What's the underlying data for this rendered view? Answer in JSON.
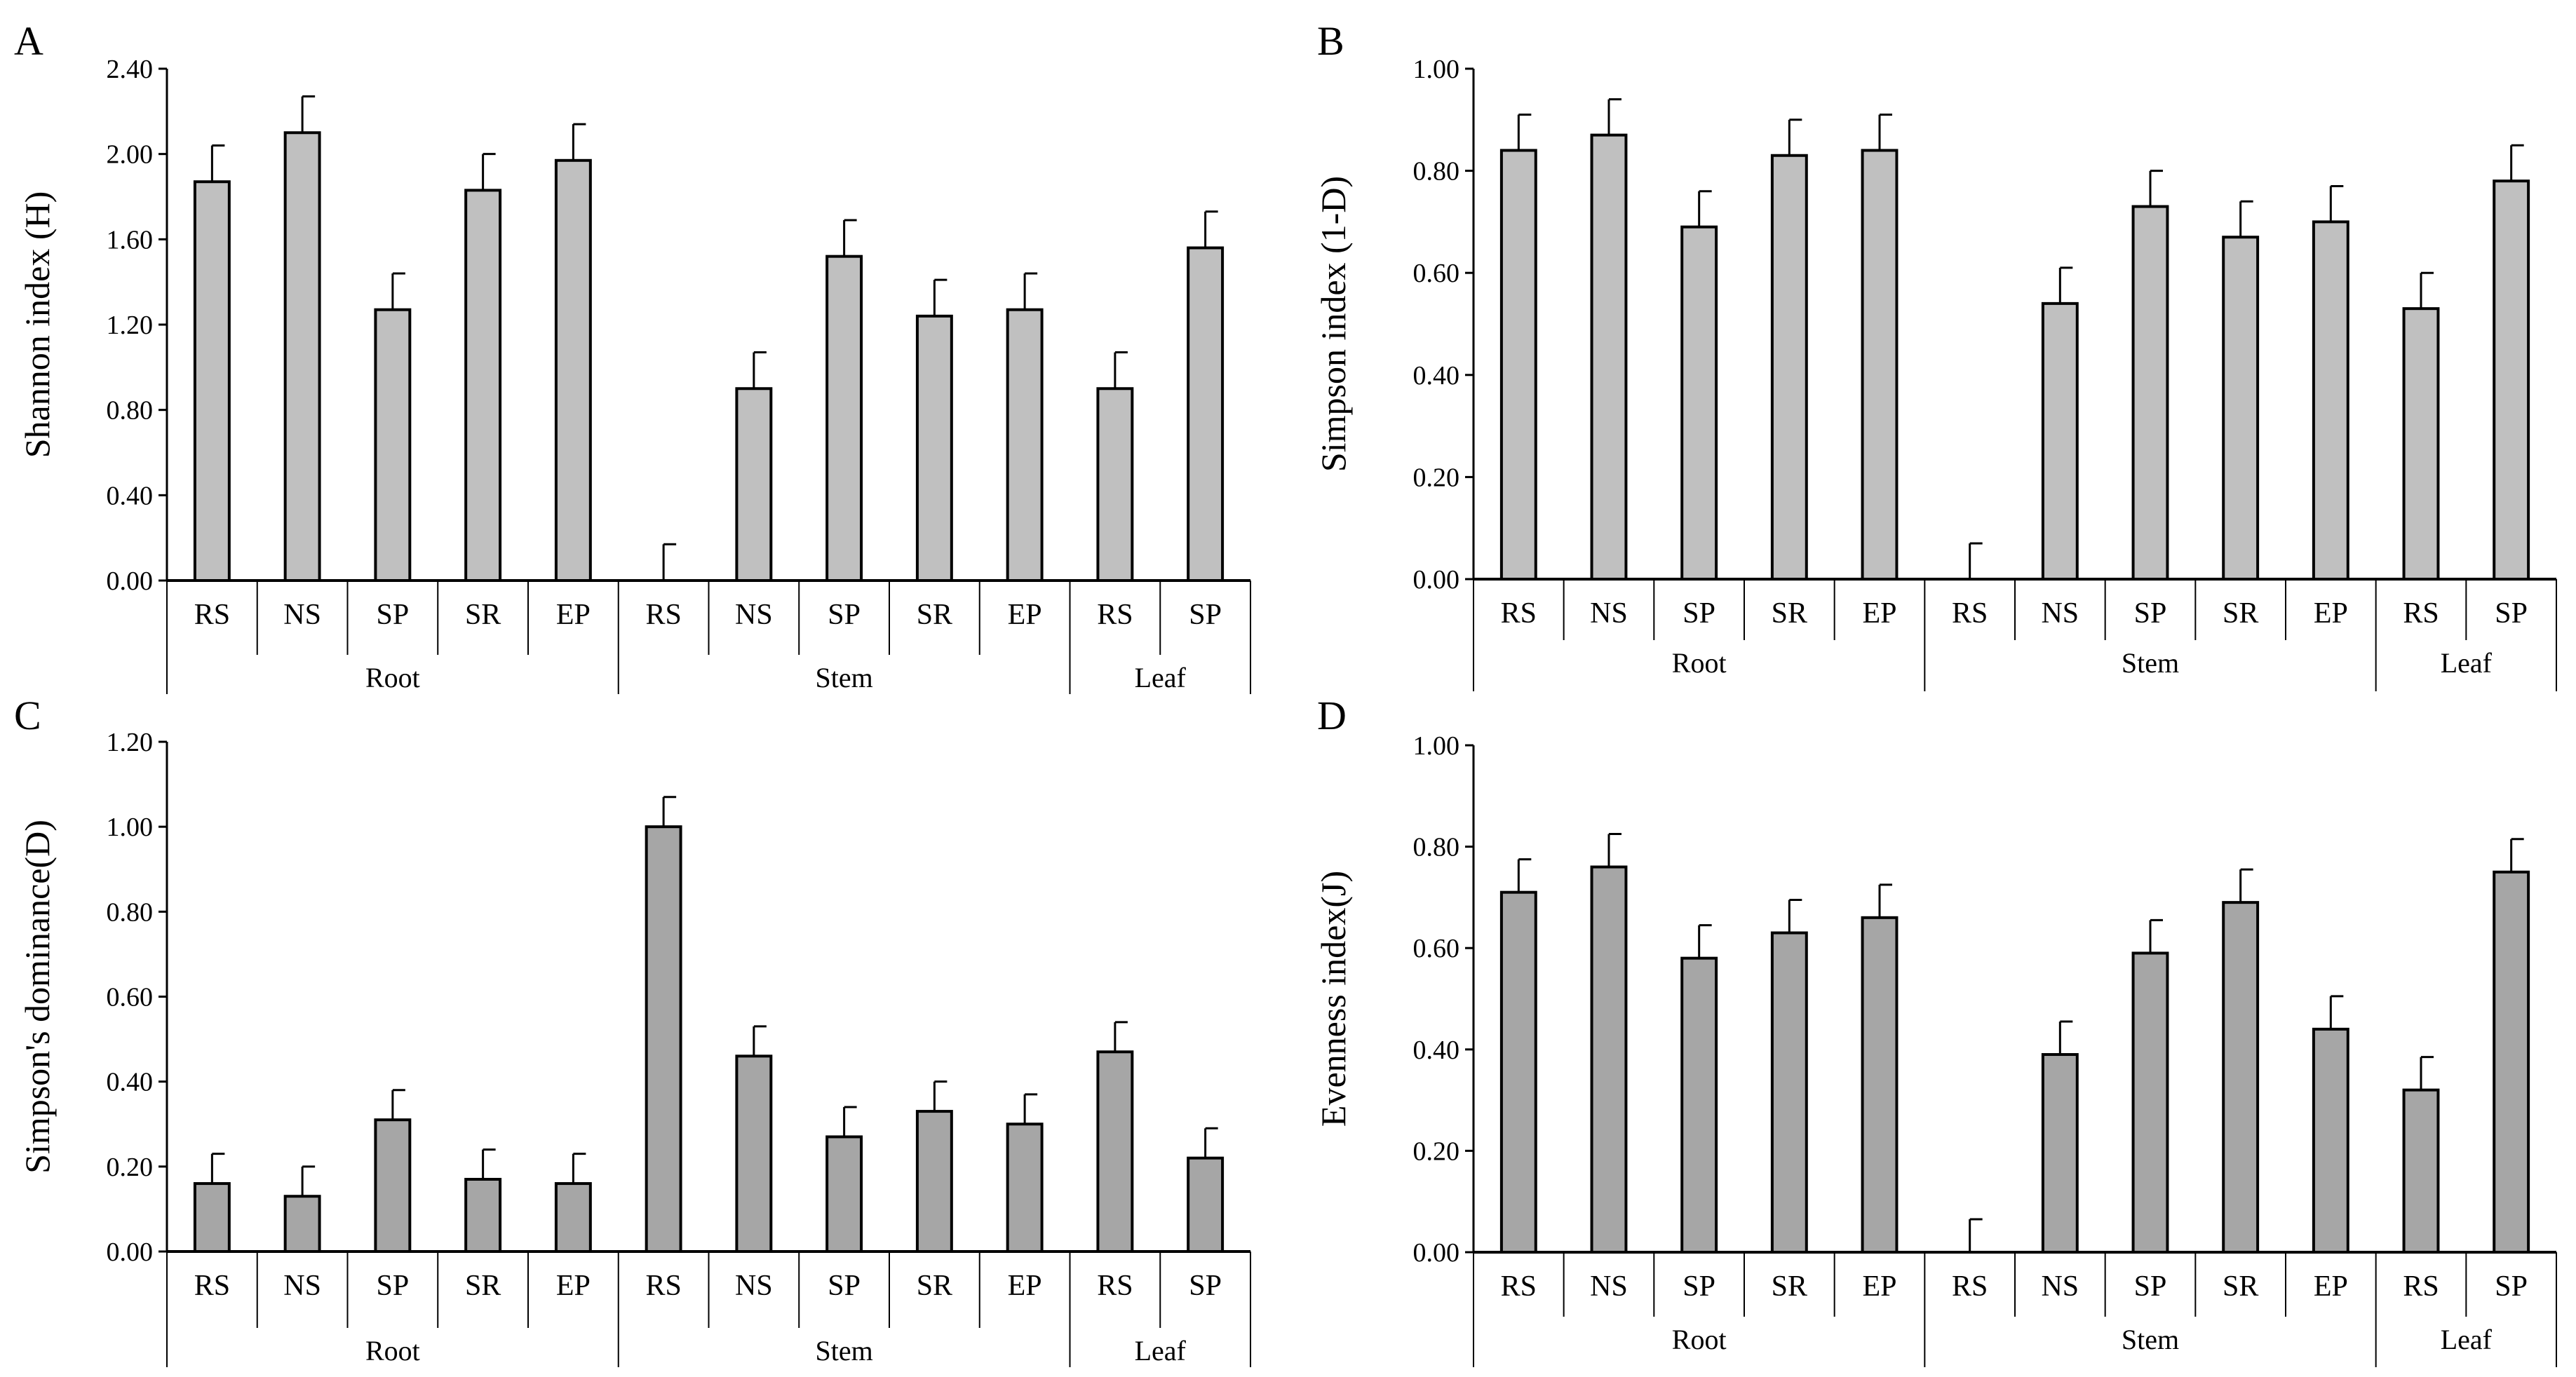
{
  "chart_data": [
    {
      "panel": "A",
      "type": "bar",
      "ylabel": "Shannon index (H)",
      "ylim": [
        0,
        2.4
      ],
      "ytick_labels": [
        "0.00",
        "0.40",
        "0.80",
        "1.20",
        "1.60",
        "2.00",
        "2.40"
      ],
      "bar_color": "#c0c0c0",
      "categories": [
        "RS",
        "NS",
        "SP",
        "SR",
        "EP",
        "RS",
        "NS",
        "SP",
        "SR",
        "EP",
        "RS",
        "SP"
      ],
      "groups": [
        {
          "name": "Root",
          "count": 5
        },
        {
          "name": "Stem",
          "count": 5
        },
        {
          "name": "Leaf",
          "count": 2
        }
      ],
      "values": [
        1.87,
        2.1,
        1.27,
        1.83,
        1.97,
        0.0,
        0.9,
        1.52,
        1.24,
        1.27,
        0.9,
        1.56
      ],
      "errors": [
        0.17,
        0.17,
        0.17,
        0.17,
        0.17,
        0.17,
        0.17,
        0.17,
        0.17,
        0.17,
        0.17,
        0.17
      ]
    },
    {
      "panel": "B",
      "type": "bar",
      "ylabel": "Simpson index (1-D)",
      "ylim": [
        0,
        1.0
      ],
      "ytick_labels": [
        "0.00",
        "0.20",
        "0.40",
        "0.60",
        "0.80",
        "1.00"
      ],
      "bar_color": "#c0c0c0",
      "categories": [
        "RS",
        "NS",
        "SP",
        "SR",
        "EP",
        "RS",
        "NS",
        "SP",
        "SR",
        "EP",
        "RS",
        "SP"
      ],
      "groups": [
        {
          "name": "Root",
          "count": 5
        },
        {
          "name": "Stem",
          "count": 5
        },
        {
          "name": "Leaf",
          "count": 2
        }
      ],
      "values": [
        0.84,
        0.87,
        0.69,
        0.83,
        0.84,
        0.0,
        0.54,
        0.73,
        0.67,
        0.7,
        0.53,
        0.78
      ],
      "errors": [
        0.07,
        0.07,
        0.07,
        0.07,
        0.07,
        0.07,
        0.07,
        0.07,
        0.07,
        0.07,
        0.07,
        0.07
      ]
    },
    {
      "panel": "C",
      "type": "bar",
      "ylabel": "Simpson's dominance(D)",
      "ylim": [
        0,
        1.2
      ],
      "ytick_labels": [
        "0.00",
        "0.20",
        "0.40",
        "0.60",
        "0.80",
        "1.00",
        "1.20"
      ],
      "bar_color": "#a6a6a6",
      "categories": [
        "RS",
        "NS",
        "SP",
        "SR",
        "EP",
        "RS",
        "NS",
        "SP",
        "SR",
        "EP",
        "RS",
        "SP"
      ],
      "groups": [
        {
          "name": "Root",
          "count": 5
        },
        {
          "name": "Stem",
          "count": 5
        },
        {
          "name": "Leaf",
          "count": 2
        }
      ],
      "values": [
        0.16,
        0.13,
        0.31,
        0.17,
        0.16,
        1.0,
        0.46,
        0.27,
        0.33,
        0.3,
        0.47,
        0.22
      ],
      "errors": [
        0.07,
        0.07,
        0.07,
        0.07,
        0.07,
        0.07,
        0.07,
        0.07,
        0.07,
        0.07,
        0.07,
        0.07
      ]
    },
    {
      "panel": "D",
      "type": "bar",
      "ylabel": "Evenness index(J)",
      "ylim": [
        0,
        1.0
      ],
      "ytick_labels": [
        "0.00",
        "0.20",
        "0.40",
        "0.60",
        "0.80",
        "1.00"
      ],
      "bar_color": "#a6a6a6",
      "categories": [
        "RS",
        "NS",
        "SP",
        "SR",
        "EP",
        "RS",
        "NS",
        "SP",
        "SR",
        "EP",
        "RS",
        "SP"
      ],
      "groups": [
        {
          "name": "Root",
          "count": 5
        },
        {
          "name": "Stem",
          "count": 5
        },
        {
          "name": "Leaf",
          "count": 2
        }
      ],
      "values": [
        0.71,
        0.76,
        0.58,
        0.63,
        0.66,
        0.0,
        0.39,
        0.59,
        0.69,
        0.44,
        0.32,
        0.75
      ],
      "errors": [
        0.065,
        0.065,
        0.065,
        0.065,
        0.065,
        0.065,
        0.065,
        0.065,
        0.065,
        0.065,
        0.065,
        0.065
      ]
    }
  ]
}
